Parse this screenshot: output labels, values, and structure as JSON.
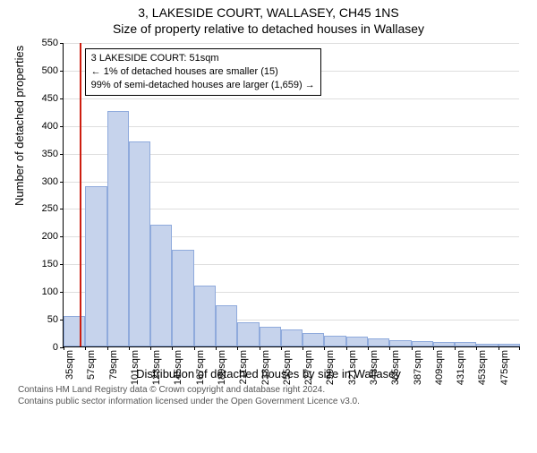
{
  "title_main": "3, LAKESIDE COURT, WALLASEY, CH45 1NS",
  "title_sub": "Size of property relative to detached houses in Wallasey",
  "ylabel": "Number of detached properties",
  "xlabel": "Distribution of detached houses by size in Wallasey",
  "chart": {
    "type": "histogram",
    "bar_fill": "#c6d3ec",
    "bar_stroke": "#8faadc",
    "grid_color": "#dedede",
    "background": "#ffffff",
    "marker_color": "#cd1e10",
    "marker_x_value": 51,
    "ylim": [
      0,
      550
    ],
    "ytick_step": 50,
    "x_start": 35,
    "x_bin_width": 22,
    "x_tick_count": 21,
    "bars": [
      55,
      290,
      425,
      370,
      220,
      175,
      110,
      75,
      43,
      35,
      30,
      25,
      20,
      18,
      15,
      12,
      10,
      8,
      8,
      5,
      5
    ],
    "x_unit": "sqm"
  },
  "info_box": {
    "line1": "3 LAKESIDE COURT: 51sqm",
    "line2": "← 1% of detached houses are smaller (15)",
    "line3": "99% of semi-detached houses are larger (1,659) →"
  },
  "footer": {
    "line1": "Contains HM Land Registry data © Crown copyright and database right 2024.",
    "line2": "Contains public sector information licensed under the Open Government Licence v3.0."
  }
}
